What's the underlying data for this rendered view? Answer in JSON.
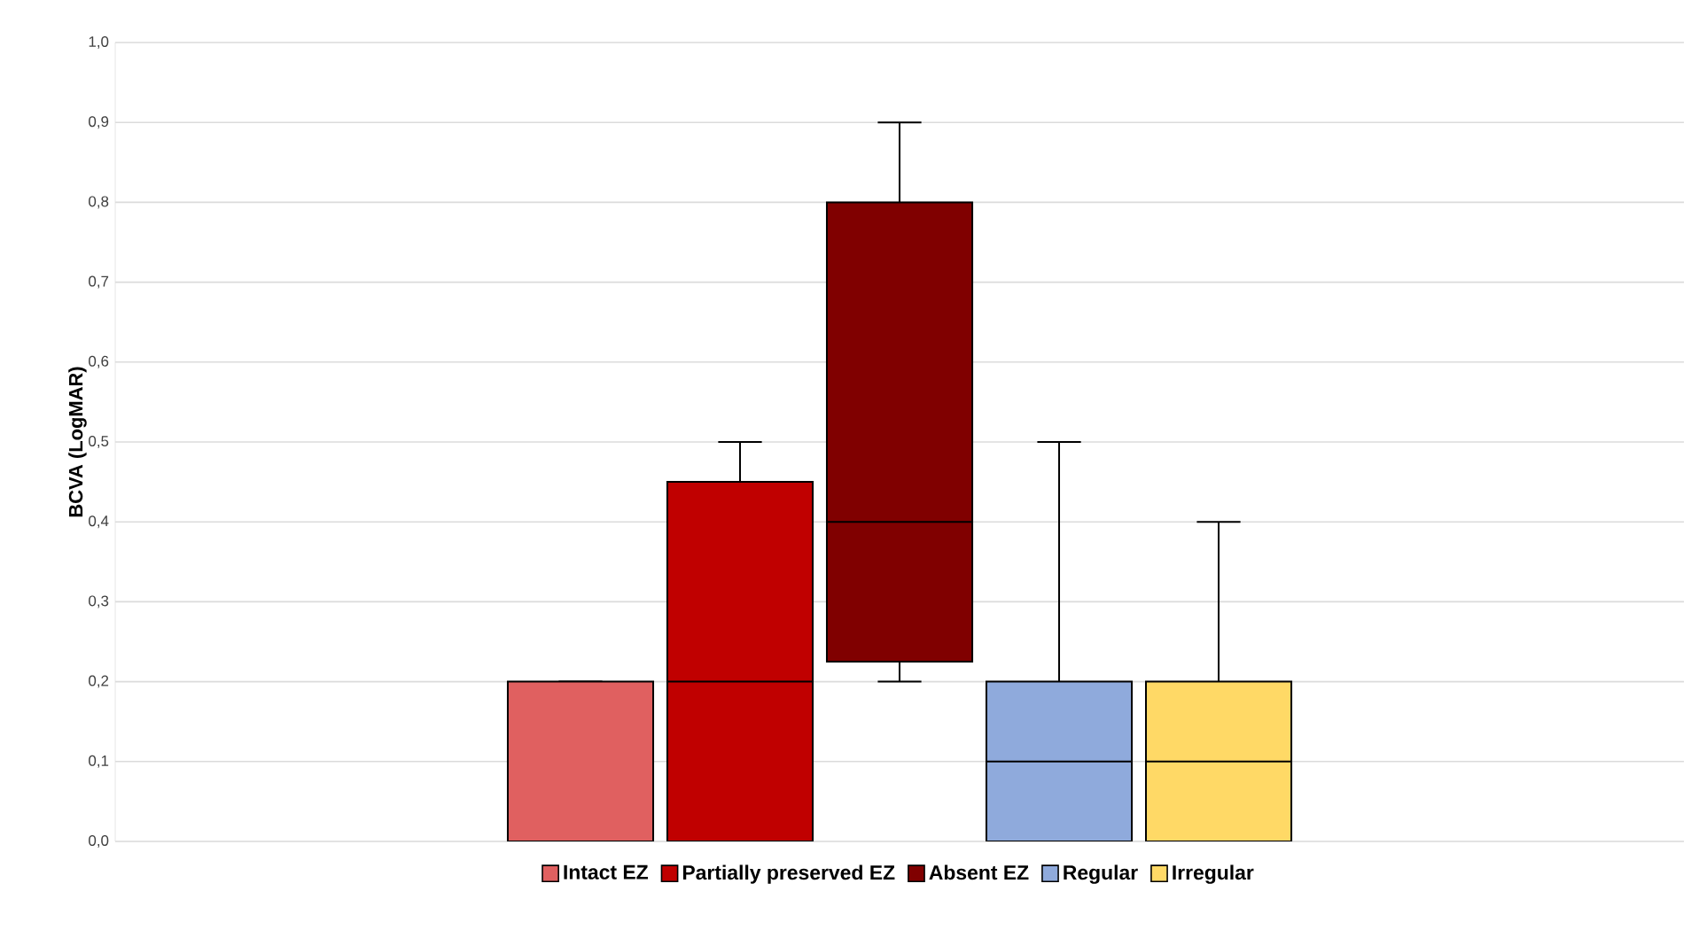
{
  "chart_data": {
    "type": "box",
    "ylabel": "BCVA (LogMAR)",
    "categories": [
      null
    ],
    "ylim": [
      0,
      1
    ],
    "yticks": [
      {
        "value": 0,
        "label": "0,0"
      },
      {
        "value": 0.1,
        "label": "0,1"
      },
      {
        "value": 0.2,
        "label": "0,2"
      },
      {
        "value": 0.3,
        "label": "0,3"
      },
      {
        "value": 0.4,
        "label": "0,4"
      },
      {
        "value": 0.5,
        "label": "0,5"
      },
      {
        "value": 0.6,
        "label": "0,6"
      },
      {
        "value": 0.7,
        "label": "0,7"
      },
      {
        "value": 0.8,
        "label": "0,8"
      },
      {
        "value": 0.9,
        "label": "0,9"
      },
      {
        "value": 1,
        "label": "1,0"
      }
    ],
    "grid": "y",
    "legend": "bottom",
    "series": [
      {
        "name": "Intact EZ",
        "color": "#e06060",
        "boxes": [
          {
            "low": 0,
            "q1": 0,
            "median": 0,
            "q3": 0.2,
            "high": 0.2
          }
        ]
      },
      {
        "name": "Partially preserved EZ",
        "color": "#c00000",
        "boxes": [
          {
            "low": 0,
            "q1": 0,
            "median": 0.2,
            "q3": 0.45,
            "high": 0.5
          }
        ]
      },
      {
        "name": "Absent EZ",
        "color": "#800000",
        "boxes": [
          {
            "low": 0.2,
            "q1": 0.225,
            "median": 0.4,
            "q3": 0.8,
            "high": 0.9
          }
        ]
      },
      {
        "name": "Regular",
        "color": "#8faadc",
        "boxes": [
          {
            "low": 0,
            "q1": 0,
            "median": 0.1,
            "q3": 0.2,
            "high": 0.5
          }
        ]
      },
      {
        "name": "Irregular",
        "color": "#ffd966",
        "boxes": [
          {
            "low": 0,
            "q1": 0,
            "median": 0.1,
            "q3": 0.2,
            "high": 0.4
          }
        ]
      }
    ]
  }
}
